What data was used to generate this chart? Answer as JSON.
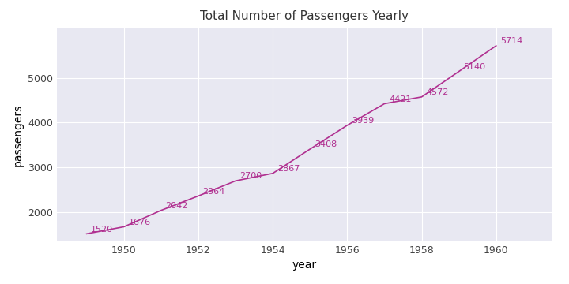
{
  "years": [
    1949,
    1950,
    1951,
    1952,
    1953,
    1954,
    1955,
    1956,
    1957,
    1958,
    1959,
    1960
  ],
  "passengers": [
    1520,
    1676,
    2042,
    2364,
    2700,
    2867,
    3408,
    3939,
    4421,
    4572,
    5140,
    5714
  ],
  "line_color": "#b03090",
  "label_color": "#b03090",
  "bg_color": "#e8e8f2",
  "fig_bg_color": "#ffffff",
  "title": "Total Number of Passengers Yearly",
  "xlabel": "year",
  "ylabel": "passengers",
  "title_fontsize": 11,
  "axis_label_fontsize": 10,
  "tick_fontsize": 9,
  "point_label_fontsize": 8,
  "ylim": [
    1350,
    6100
  ],
  "xlim": [
    1948.2,
    1961.5
  ],
  "xticks": [
    1950,
    1952,
    1954,
    1956,
    1958,
    1960
  ],
  "yticks": [
    2000,
    3000,
    4000,
    5000
  ]
}
